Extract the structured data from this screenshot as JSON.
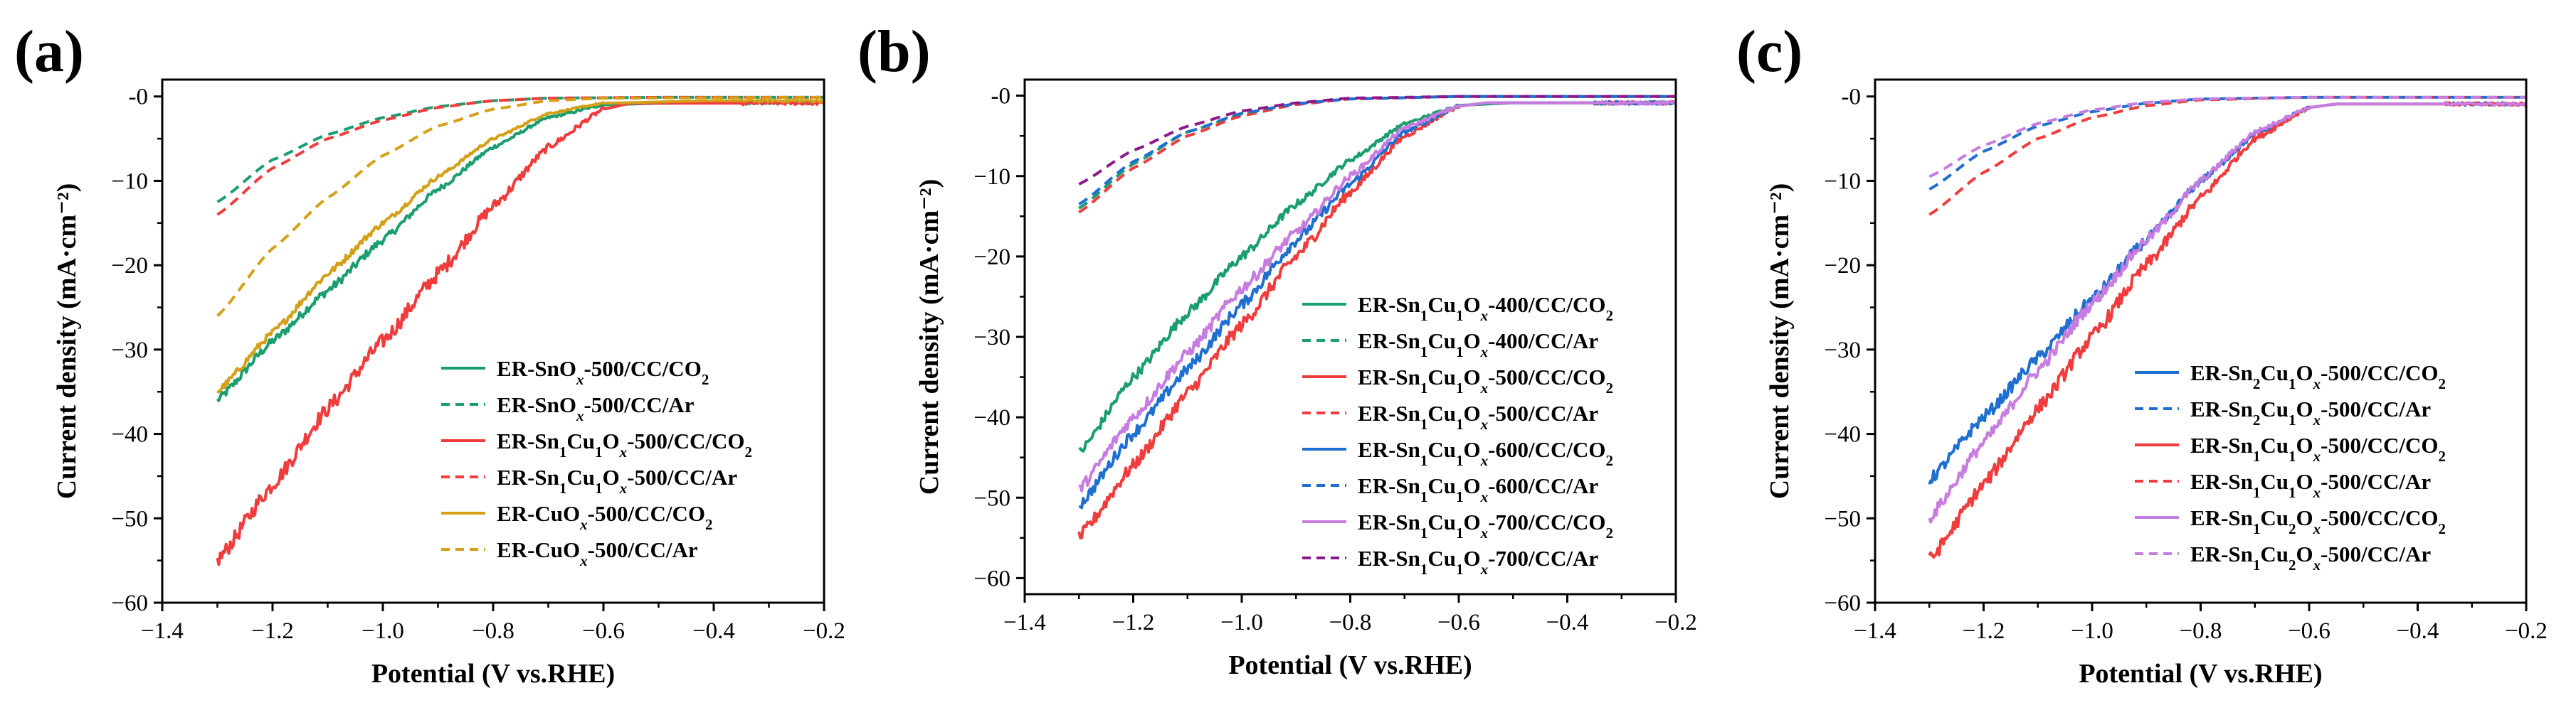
{
  "figure": {
    "description": "Linear sweep voltammetry curves, three panels"
  },
  "chart_data": [
    {
      "type": "line",
      "panel_label": "(a)",
      "xlabel": "Potential (V vs.RHE)",
      "ylabel": "Current density (mA·cm⁻²)",
      "xlim": [
        -1.4,
        -0.2
      ],
      "ylim": [
        -60,
        2
      ],
      "xticks": [
        -1.4,
        -1.2,
        -1.0,
        -0.8,
        -0.6,
        -0.4,
        -0.2
      ],
      "xtick_labels": [
        "−1.4",
        "−1.2",
        "−1.0",
        "−0.8",
        "−0.6",
        "−0.4",
        "−0.2"
      ],
      "yticks": [
        0,
        -10,
        -20,
        -30,
        -40,
        -50,
        -60
      ],
      "ytick_labels": [
        "-0",
        "−10",
        "−20",
        "−30",
        "−40",
        "−50",
        "−60"
      ],
      "legend_position": "lower-right",
      "series": [
        {
          "name": "ER-SnO_x-500/CC/CO_2",
          "color": "#1a9e6f",
          "dash": "solid",
          "noise": 0.5,
          "points": [
            [
              -1.3,
              -36
            ],
            [
              -1.2,
              -29
            ],
            [
              -1.1,
              -23
            ],
            [
              -1.0,
              -17
            ],
            [
              -0.9,
              -11
            ],
            [
              -0.8,
              -6
            ],
            [
              -0.7,
              -2.5
            ],
            [
              -0.6,
              -1.0
            ],
            [
              -0.5,
              -0.8
            ],
            [
              -0.3,
              -0.7
            ],
            [
              -0.2,
              -0.7
            ]
          ]
        },
        {
          "name": "ER-SnO_x-500/CC/Ar",
          "color": "#1a9e6f",
          "dash": "dashed",
          "noise": 0,
          "points": [
            [
              -1.3,
              -12.5
            ],
            [
              -1.2,
              -7.5
            ],
            [
              -1.1,
              -4.5
            ],
            [
              -1.0,
              -2.5
            ],
            [
              -0.9,
              -1.2
            ],
            [
              -0.8,
              -0.5
            ],
            [
              -0.7,
              -0.2
            ],
            [
              -0.5,
              -0.1
            ],
            [
              -0.2,
              -0.1
            ]
          ]
        },
        {
          "name": "ER-Sn_1Cu_1O_x-500/CC/CO_2",
          "color": "#f03c3c",
          "dash": "solid",
          "noise": 0.9,
          "points": [
            [
              -1.3,
              -55
            ],
            [
              -1.2,
              -46
            ],
            [
              -1.1,
              -37
            ],
            [
              -1.0,
              -29
            ],
            [
              -0.9,
              -21
            ],
            [
              -0.8,
              -13
            ],
            [
              -0.7,
              -6
            ],
            [
              -0.6,
              -1.5
            ],
            [
              -0.55,
              -0.8
            ],
            [
              -0.4,
              -0.8
            ],
            [
              -0.2,
              -0.8
            ]
          ]
        },
        {
          "name": "ER-Sn_1Cu_1O_x-500/CC/Ar",
          "color": "#f03c3c",
          "dash": "dashed",
          "noise": 0,
          "points": [
            [
              -1.3,
              -14
            ],
            [
              -1.2,
              -8.5
            ],
            [
              -1.1,
              -5
            ],
            [
              -1.0,
              -2.8
            ],
            [
              -0.9,
              -1.3
            ],
            [
              -0.8,
              -0.5
            ],
            [
              -0.7,
              -0.2
            ],
            [
              -0.5,
              -0.1
            ],
            [
              -0.2,
              -0.1
            ]
          ]
        },
        {
          "name": "ER-CuO_x-500/CC/CO_2",
          "color": "#d4a017",
          "dash": "solid",
          "noise": 0.4,
          "points": [
            [
              -1.3,
              -35
            ],
            [
              -1.2,
              -28
            ],
            [
              -1.1,
              -21
            ],
            [
              -1.0,
              -15
            ],
            [
              -0.9,
              -9.5
            ],
            [
              -0.8,
              -5
            ],
            [
              -0.7,
              -2
            ],
            [
              -0.6,
              -0.8
            ],
            [
              -0.4,
              -0.5
            ],
            [
              -0.2,
              -0.5
            ]
          ]
        },
        {
          "name": "ER-CuO_x-500/CC/Ar",
          "color": "#d4a017",
          "dash": "dashed",
          "noise": 0,
          "points": [
            [
              -1.3,
              -26
            ],
            [
              -1.2,
              -18
            ],
            [
              -1.1,
              -12
            ],
            [
              -1.0,
              -7
            ],
            [
              -0.9,
              -3.5
            ],
            [
              -0.8,
              -1.5
            ],
            [
              -0.7,
              -0.5
            ],
            [
              -0.6,
              -0.2
            ],
            [
              -0.2,
              -0.1
            ]
          ]
        }
      ]
    },
    {
      "type": "line",
      "panel_label": "(b)",
      "xlabel": "Potential (V vs.RHE)",
      "ylabel": "Current density (mA·cm⁻²)",
      "xlim": [
        -1.4,
        -0.2
      ],
      "ylim": [
        -62,
        2
      ],
      "xticks": [
        -1.4,
        -1.2,
        -1.0,
        -0.8,
        -0.6,
        -0.4,
        -0.2
      ],
      "xtick_labels": [
        "−1.4",
        "−1.2",
        "−1.0",
        "−0.8",
        "−0.6",
        "−0.4",
        "−0.2"
      ],
      "yticks": [
        0,
        -10,
        -20,
        -30,
        -40,
        -50,
        -60
      ],
      "ytick_labels": [
        "-0",
        "−10",
        "−20",
        "−30",
        "−40",
        "−50",
        "−60"
      ],
      "legend_position": "lower-right",
      "series": [
        {
          "name": "ER-Sn_1Cu_1O_x-400/CC/CO_2",
          "color": "#1a9e6f",
          "dash": "solid",
          "noise": 0.6,
          "points": [
            [
              -1.3,
              -44.5
            ],
            [
              -1.2,
              -35
            ],
            [
              -1.1,
              -27
            ],
            [
              -1.0,
              -20
            ],
            [
              -0.9,
              -13.5
            ],
            [
              -0.8,
              -8
            ],
            [
              -0.7,
              -3.5
            ],
            [
              -0.6,
              -1.2
            ],
            [
              -0.5,
              -0.9
            ],
            [
              -0.2,
              -0.9
            ]
          ]
        },
        {
          "name": "ER-Sn_1Cu_1O_x-400/CC/Ar",
          "color": "#1a9e6f",
          "dash": "dashed",
          "noise": 0,
          "points": [
            [
              -1.3,
              -14
            ],
            [
              -1.2,
              -8.5
            ],
            [
              -1.1,
              -4.5
            ],
            [
              -1.0,
              -2.3
            ],
            [
              -0.9,
              -1
            ],
            [
              -0.8,
              -0.4
            ],
            [
              -0.6,
              -0.1
            ],
            [
              -0.2,
              -0.1
            ]
          ]
        },
        {
          "name": "ER-Sn_1Cu_1O_x-500/CC/CO_2",
          "color": "#f03c3c",
          "dash": "solid",
          "noise": 0.8,
          "points": [
            [
              -1.3,
              -55
            ],
            [
              -1.2,
              -46
            ],
            [
              -1.1,
              -37
            ],
            [
              -1.0,
              -28.5
            ],
            [
              -0.9,
              -20
            ],
            [
              -0.8,
              -12
            ],
            [
              -0.7,
              -5
            ],
            [
              -0.6,
              -1.3
            ],
            [
              -0.55,
              -0.9
            ],
            [
              -0.2,
              -0.9
            ]
          ]
        },
        {
          "name": "ER-Sn_1Cu_1O_x-500/CC/Ar",
          "color": "#f03c3c",
          "dash": "dashed",
          "noise": 0,
          "points": [
            [
              -1.3,
              -14.5
            ],
            [
              -1.2,
              -9
            ],
            [
              -1.1,
              -5
            ],
            [
              -1.0,
              -2.5
            ],
            [
              -0.9,
              -1.1
            ],
            [
              -0.8,
              -0.4
            ],
            [
              -0.6,
              -0.1
            ],
            [
              -0.2,
              -0.1
            ]
          ]
        },
        {
          "name": "ER-Sn_1Cu_1O_x-600/CC/CO_2",
          "color": "#1f6fd0",
          "dash": "solid",
          "noise": 0.7,
          "points": [
            [
              -1.3,
              -51
            ],
            [
              -1.2,
              -42
            ],
            [
              -1.1,
              -34
            ],
            [
              -1.0,
              -26
            ],
            [
              -0.9,
              -18
            ],
            [
              -0.8,
              -11
            ],
            [
              -0.7,
              -4.5
            ],
            [
              -0.6,
              -1.3
            ],
            [
              -0.55,
              -0.9
            ],
            [
              -0.2,
              -0.9
            ]
          ]
        },
        {
          "name": "ER-Sn_1Cu_1O_x-600/CC/Ar",
          "color": "#1f6fd0",
          "dash": "dashed",
          "noise": 0,
          "points": [
            [
              -1.3,
              -13.5
            ],
            [
              -1.2,
              -8.2
            ],
            [
              -1.1,
              -4.5
            ],
            [
              -1.0,
              -2.2
            ],
            [
              -0.9,
              -1
            ],
            [
              -0.8,
              -0.4
            ],
            [
              -0.6,
              -0.1
            ],
            [
              -0.2,
              -0.1
            ]
          ]
        },
        {
          "name": "ER-Sn_1Cu_1O_x-700/CC/CO_2",
          "color": "#c77ddf",
          "dash": "solid",
          "noise": 0.7,
          "points": [
            [
              -1.3,
              -49
            ],
            [
              -1.2,
              -40
            ],
            [
              -1.1,
              -32
            ],
            [
              -1.0,
              -24
            ],
            [
              -0.9,
              -17
            ],
            [
              -0.8,
              -10
            ],
            [
              -0.7,
              -4
            ],
            [
              -0.6,
              -1.3
            ],
            [
              -0.55,
              -0.9
            ],
            [
              -0.2,
              -0.9
            ]
          ]
        },
        {
          "name": "ER-Sn_1Cu_1O_x-700/CC/Ar",
          "color": "#8b1a8b",
          "dash": "dashed",
          "noise": 0,
          "points": [
            [
              -1.3,
              -11
            ],
            [
              -1.2,
              -6.8
            ],
            [
              -1.1,
              -3.8
            ],
            [
              -1.0,
              -1.9
            ],
            [
              -0.9,
              -0.9
            ],
            [
              -0.8,
              -0.3
            ],
            [
              -0.6,
              -0.1
            ],
            [
              -0.2,
              -0.1
            ]
          ]
        }
      ]
    },
    {
      "type": "line",
      "panel_label": "(c)",
      "xlabel": "Potential (V vs.RHE)",
      "ylabel": "Current density (mA·cm⁻²)",
      "xlim": [
        -1.4,
        -0.2
      ],
      "ylim": [
        -60,
        2
      ],
      "xticks": [
        -1.4,
        -1.2,
        -1.0,
        -0.8,
        -0.6,
        -0.4,
        -0.2
      ],
      "xtick_labels": [
        "−1.4",
        "−1.2",
        "−1.0",
        "−0.8",
        "−0.6",
        "−0.4",
        "−0.2"
      ],
      "yticks": [
        0,
        -10,
        -20,
        -30,
        -40,
        -50,
        -60
      ],
      "ytick_labels": [
        "-0",
        "−10",
        "−20",
        "−30",
        "−40",
        "−50",
        "−60"
      ],
      "legend_position": "lower-right",
      "series": [
        {
          "name": "ER-Sn_2Cu_1O_x-500/CC/CO_2",
          "color": "#1f6fd0",
          "dash": "solid",
          "noise": 0.7,
          "points": [
            [
              -1.3,
              -45.5
            ],
            [
              -1.2,
              -38
            ],
            [
              -1.1,
              -31
            ],
            [
              -1.0,
              -24
            ],
            [
              -0.9,
              -17
            ],
            [
              -0.8,
              -10
            ],
            [
              -0.7,
              -4.5
            ],
            [
              -0.6,
              -1.3
            ],
            [
              -0.55,
              -0.9
            ],
            [
              -0.2,
              -0.9
            ]
          ]
        },
        {
          "name": "ER-Sn_2Cu_1O_x-500/CC/Ar",
          "color": "#1f6fd0",
          "dash": "dashed",
          "noise": 0,
          "points": [
            [
              -1.3,
              -11
            ],
            [
              -1.2,
              -6.5
            ],
            [
              -1.1,
              -3.5
            ],
            [
              -1.0,
              -1.8
            ],
            [
              -0.9,
              -0.8
            ],
            [
              -0.8,
              -0.3
            ],
            [
              -0.6,
              -0.1
            ],
            [
              -0.2,
              -0.1
            ]
          ]
        },
        {
          "name": "ER-Sn_1Cu_1O_x-500/CC/CO_2",
          "color": "#f03c3c",
          "dash": "solid",
          "noise": 0.8,
          "points": [
            [
              -1.3,
              -55
            ],
            [
              -1.2,
              -46
            ],
            [
              -1.1,
              -37
            ],
            [
              -1.0,
              -28.5
            ],
            [
              -0.9,
              -20
            ],
            [
              -0.8,
              -12
            ],
            [
              -0.7,
              -5
            ],
            [
              -0.6,
              -1.3
            ],
            [
              -0.55,
              -0.9
            ],
            [
              -0.2,
              -0.9
            ]
          ]
        },
        {
          "name": "ER-Sn_1Cu_1O_x-500/CC/Ar",
          "color": "#f03c3c",
          "dash": "dashed",
          "noise": 0,
          "points": [
            [
              -1.3,
              -14
            ],
            [
              -1.2,
              -9
            ],
            [
              -1.1,
              -5
            ],
            [
              -1.0,
              -2.5
            ],
            [
              -0.9,
              -1.1
            ],
            [
              -0.8,
              -0.4
            ],
            [
              -0.6,
              -0.1
            ],
            [
              -0.2,
              -0.1
            ]
          ]
        },
        {
          "name": "ER-Sn_1Cu_2O_x-500/CC/CO_2",
          "color": "#c77ddf",
          "dash": "solid",
          "noise": 0.7,
          "points": [
            [
              -1.3,
              -50
            ],
            [
              -1.2,
              -41
            ],
            [
              -1.1,
              -32.5
            ],
            [
              -1.0,
              -24.5
            ],
            [
              -0.9,
              -17
            ],
            [
              -0.8,
              -10
            ],
            [
              -0.7,
              -4.2
            ],
            [
              -0.6,
              -1.3
            ],
            [
              -0.55,
              -0.9
            ],
            [
              -0.2,
              -0.9
            ]
          ]
        },
        {
          "name": "ER-Sn_1Cu_2O_x-500/CC/Ar",
          "color": "#c77ddf",
          "dash": "dashed",
          "noise": 0,
          "points": [
            [
              -1.3,
              -9.5
            ],
            [
              -1.2,
              -5.8
            ],
            [
              -1.1,
              -3.2
            ],
            [
              -1.0,
              -1.6
            ],
            [
              -0.9,
              -0.7
            ],
            [
              -0.8,
              -0.3
            ],
            [
              -0.6,
              -0.1
            ],
            [
              -0.2,
              -0.1
            ]
          ]
        }
      ]
    }
  ]
}
